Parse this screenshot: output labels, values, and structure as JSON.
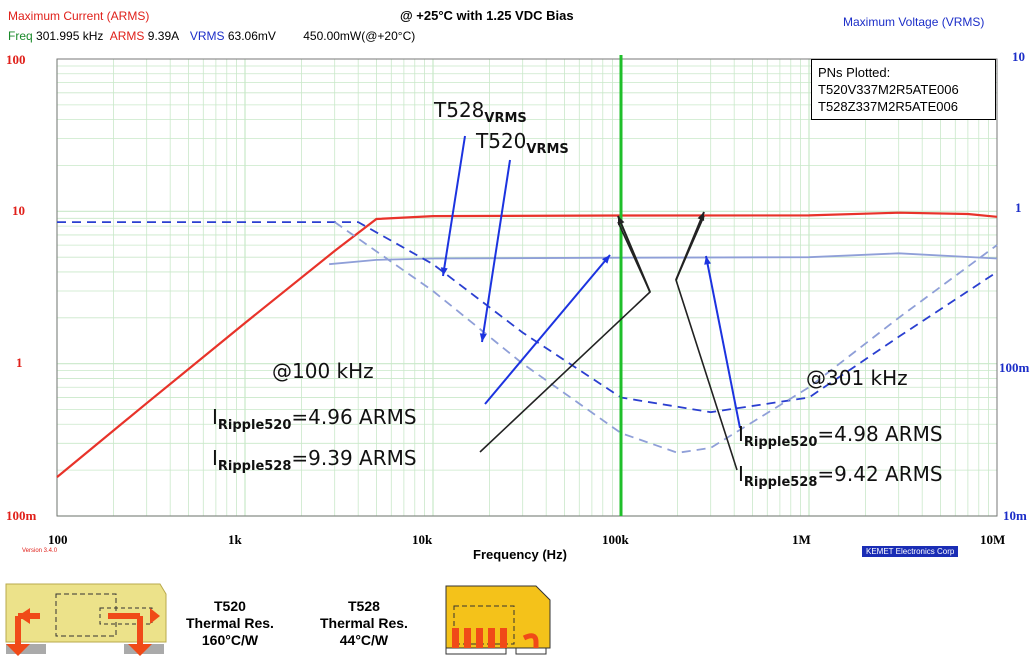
{
  "header": {
    "left_title": "Maximum Current (ARMS)",
    "center_title": "@ +25°C with 1.25 VDC Bias",
    "right_title": "Maximum Voltage (VRMS)",
    "freq_label": "Freq",
    "freq_value": "301.995 kHz",
    "arms_label": "ARMS",
    "arms_value": "9.39A",
    "vrms_label": "VRMS",
    "vrms_value": "63.06mV",
    "power_value": "450.00mW(@+20°C)"
  },
  "legend": {
    "title": "PNs Plotted:",
    "items": [
      "T520V337M2R5ATE006",
      "T528Z337M2R5ATE006"
    ]
  },
  "annotations": {
    "t528_vrms": {
      "main": "T528",
      "sub": "VRMS"
    },
    "t520_vrms": {
      "main": "T520",
      "sub": "VRMS"
    },
    "at_100k": "@100 kHz",
    "at_301k": "@301 kHz",
    "left_520": {
      "main": "I",
      "sub": "Ripple520",
      "tail": "=4.96 ARMS"
    },
    "left_528": {
      "main": "I",
      "sub": "Ripple528",
      "tail": "=9.39 ARMS"
    },
    "right_520": {
      "main": "I",
      "sub": "Ripple520",
      "tail": "=4.98 ARMS"
    },
    "right_528": {
      "main": "I",
      "sub": "Ripple528",
      "tail": "=9.42 ARMS"
    }
  },
  "version": "Version 3.4.0",
  "brand": "KEMET Electronics Corp",
  "thermal": [
    {
      "name": "T520",
      "line1": "Thermal Res.",
      "line2": "160°C/W"
    },
    {
      "name": "T528",
      "line1": "Thermal Res.",
      "line2": "44°C/W"
    }
  ],
  "colors": {
    "current": "#e8332a",
    "t520_vrms": "#2a3fd0",
    "t528_vrms": "#8f9fd8",
    "current_520": "#8f9fd8",
    "marker": "#1fbf2a",
    "arrow_blue": "#1c33e0",
    "arrow_black": "#222222",
    "grid": "#c9e8c9"
  },
  "chart_data": {
    "type": "line",
    "xlabel": "Frequency (Hz)",
    "x_scale": "log",
    "xlim": [
      100,
      10000000
    ],
    "x_ticks": [
      "100",
      "1k",
      "10k",
      "100k",
      "1M",
      "10M"
    ],
    "ylabel_left": "Maximum Current (ARMS)",
    "y_scale": "log",
    "ylim_left": [
      0.1,
      100
    ],
    "y_ticks_left": [
      "100m",
      "1",
      "10",
      "100"
    ],
    "ylabel_right": "Maximum Voltage (VRMS)",
    "ylim_right": [
      0.01,
      10
    ],
    "y_ticks_right": [
      "10m",
      "100m",
      "1",
      "10"
    ],
    "grid": true,
    "legend_position": "top-right",
    "marker_x": 100000,
    "series": [
      {
        "id": "t528_irms",
        "axis": "left",
        "style": "solid",
        "color_key": "current",
        "x": [
          100,
          300,
          1000,
          3000,
          5000,
          10000,
          100000,
          1000000,
          3000000,
          7000000,
          10000000
        ],
        "y": [
          0.18,
          0.55,
          1.85,
          5.5,
          8.9,
          9.3,
          9.39,
          9.4,
          9.8,
          9.6,
          9.2
        ]
      },
      {
        "id": "t520_irms",
        "axis": "left",
        "style": "solid",
        "color_key": "current_520",
        "x": [
          2800,
          5000,
          10000,
          100000,
          1000000,
          3000000,
          10000000
        ],
        "y": [
          4.5,
          4.8,
          4.9,
          4.96,
          5.0,
          5.3,
          4.9
        ]
      },
      {
        "id": "t520_vrms",
        "axis": "right",
        "style": "dashed",
        "color_key": "t520_vrms",
        "x": [
          100,
          1000,
          4000,
          10000,
          30000,
          100000,
          300000,
          1000000,
          3000000,
          10000000
        ],
        "y": [
          0.85,
          0.85,
          0.85,
          0.45,
          0.16,
          0.06,
          0.048,
          0.06,
          0.15,
          0.4
        ]
      },
      {
        "id": "t528_vrms",
        "axis": "right",
        "style": "dashed",
        "color_key": "t528_vrms",
        "x": [
          3000,
          10000,
          30000,
          100000,
          200000,
          300000,
          1000000,
          3000000,
          10000000
        ],
        "y": [
          0.85,
          0.3,
          0.1,
          0.035,
          0.026,
          0.028,
          0.07,
          0.2,
          0.6
        ]
      }
    ]
  }
}
